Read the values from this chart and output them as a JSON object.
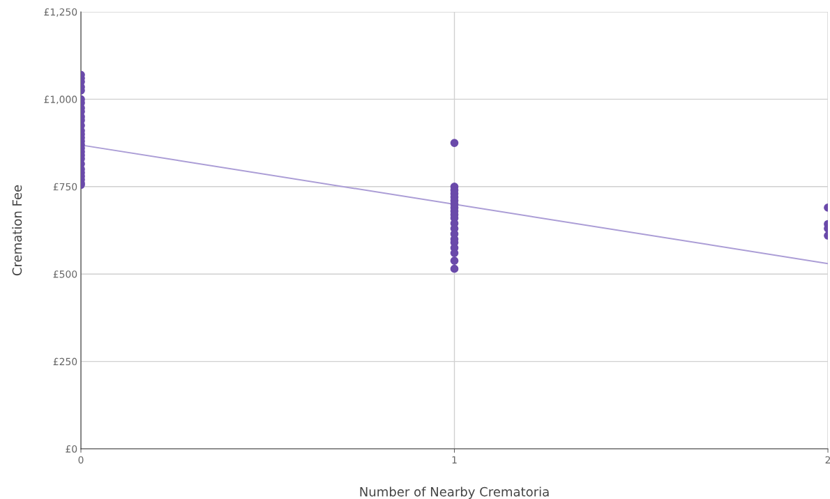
{
  "chart_data": {
    "type": "scatter",
    "xlabel": "Number of Nearby Crematoria",
    "ylabel": "Cremation Fee",
    "xlim": [
      0,
      2
    ],
    "xticks": [
      0,
      1,
      2
    ],
    "ylim": [
      0,
      1250
    ],
    "yticks": [
      {
        "value": 0,
        "label": "£0"
      },
      {
        "value": 250,
        "label": "£250"
      },
      {
        "value": 500,
        "label": "£500"
      },
      {
        "value": 750,
        "label": "£750"
      },
      {
        "value": 1000,
        "label": "£1,000"
      },
      {
        "value": 1250,
        "label": "£1,250"
      }
    ],
    "grid": true,
    "series": [
      {
        "marker": "circle",
        "color": "#6a4aaa",
        "x": [
          0,
          0,
          0,
          0,
          0,
          0,
          0,
          0,
          0,
          0,
          0,
          0,
          0,
          0,
          0,
          0,
          0,
          0,
          0,
          0,
          0,
          0,
          0,
          0,
          0,
          0,
          0,
          0,
          1,
          1,
          1,
          1,
          1,
          1,
          1,
          1,
          1,
          1,
          1,
          1,
          1,
          1,
          1,
          1,
          1,
          1,
          1,
          1,
          2,
          2,
          2,
          2
        ],
        "values": [
          1070,
          1060,
          1050,
          1035,
          1025,
          1000,
          990,
          975,
          965,
          950,
          940,
          925,
          910,
          900,
          890,
          880,
          870,
          860,
          850,
          840,
          830,
          815,
          800,
          790,
          780,
          770,
          760,
          755,
          875,
          750,
          740,
          730,
          720,
          710,
          700,
          690,
          680,
          670,
          660,
          645,
          630,
          615,
          600,
          590,
          575,
          560,
          538,
          515,
          690,
          643,
          630,
          610
        ]
      },
      {
        "type": "line",
        "color": "#ab9dd6",
        "x": [
          0,
          2
        ],
        "values": [
          869,
          530
        ]
      }
    ]
  }
}
